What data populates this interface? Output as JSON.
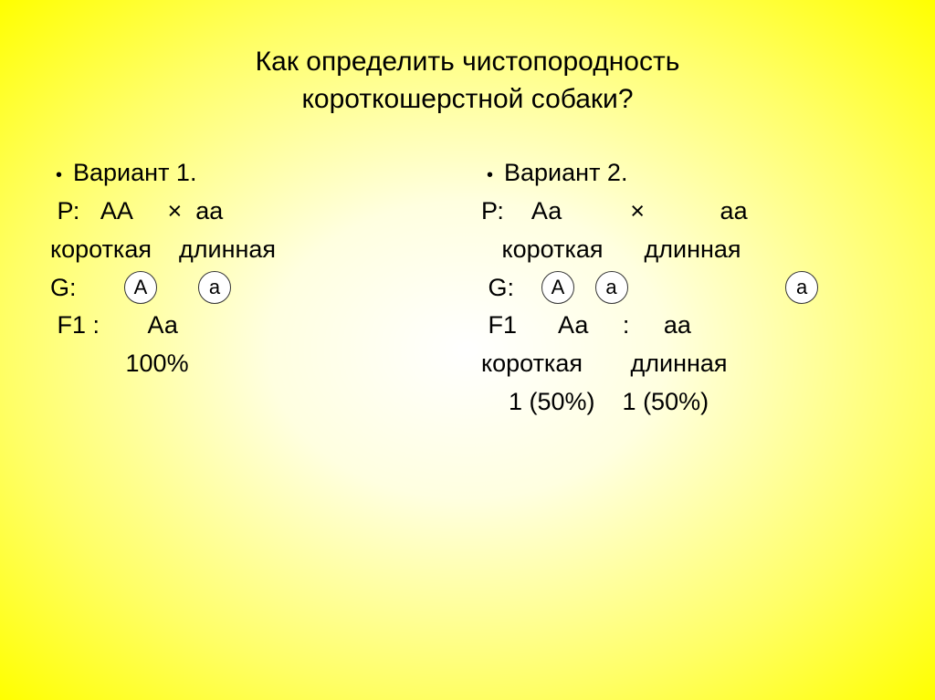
{
  "title_line1": "Как определить чистопородность",
  "title_line2": "короткошерстной собаки?",
  "colors": {
    "text": "#000000",
    "gamete_border": "#333333",
    "gamete_bg": "#ffffff",
    "gradient_center": "#ffffff",
    "gradient_edge": "#ffff00"
  },
  "fonts": {
    "title_size": 30,
    "body_size": 27,
    "gamete_size": 22
  },
  "variant1": {
    "header": "Вариант 1.",
    "p_line": " Р:   АА     ×  аа",
    "pheno": "короткая    длинная",
    "g_label": "G:       ",
    "gametes": [
      "А",
      "а"
    ],
    "gamete_gap": "      ",
    "f1": " F1 :       Аа",
    "percent": "           100%"
  },
  "variant2": {
    "header": "Вариант 2.",
    "p_line": "Р:    Аа          ×           аа",
    "pheno1": "   короткая      длинная",
    "g_label": " G:    ",
    "gametes": [
      "А",
      "а",
      "а"
    ],
    "gamete_gap1": "   ",
    "gamete_gap2": "                       ",
    "f1": " F1      Аа     :     аа",
    "pheno2": "короткая       длинная",
    "ratio": "    1 (50%)    1 (50%)"
  }
}
